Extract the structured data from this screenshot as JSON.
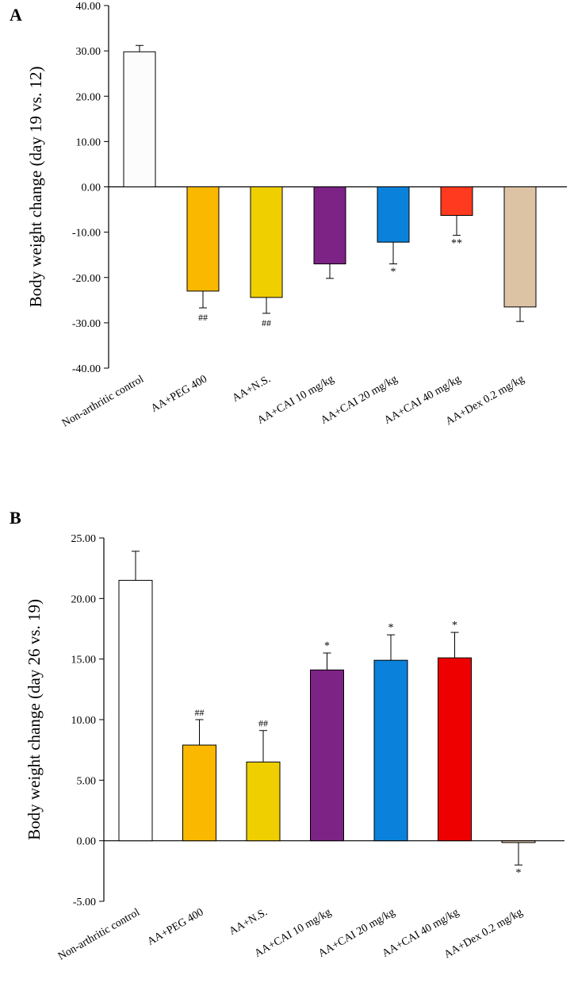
{
  "chart_data": [
    {
      "panel_label": "A",
      "type": "bar",
      "categories": [
        "Non-arthritic control",
        "AA+PEG 400",
        "AA+N.S.",
        "AA+CAI 10 mg/kg",
        "AA+CAI 20 mg/kg",
        "AA+CAI 40 mg/kg",
        "AA+Dex 0.2 mg/kg"
      ],
      "values": [
        29.8,
        -23.0,
        -24.4,
        -17.0,
        -12.2,
        -6.3,
        -26.5
      ],
      "errors": [
        1.4,
        3.7,
        3.5,
        3.2,
        4.8,
        4.4,
        3.2
      ],
      "annotations": [
        "",
        "##",
        "##",
        "",
        "*",
        "**",
        ""
      ],
      "colors": [
        "#fcfcfc",
        "#fbb800",
        "#efcf00",
        "#7c2385",
        "#0a82dc",
        "#ff3a1e",
        "#dcc3a4"
      ],
      "ylabel": "Body weight change (day 19 vs. 12)",
      "xlabel": "",
      "ylim": [
        -40,
        40
      ],
      "yticks": [
        "-40.00",
        "-30.00",
        "-20.00",
        "-10.00",
        "0.00",
        "10.00",
        "20.00",
        "30.00",
        "40.00"
      ],
      "grid": false
    },
    {
      "panel_label": "B",
      "type": "bar",
      "categories": [
        "Non-arthritic control",
        "AA+PEG 400",
        "AA+N.S.",
        "AA+CAI 10 mg/kg",
        "AA+CAI 20 mg/kg",
        "AA+CAI 40 mg/kg",
        "AA+Dex 0.2 mg/kg"
      ],
      "values": [
        21.5,
        7.9,
        6.5,
        14.1,
        14.9,
        15.1,
        -0.15
      ],
      "errors": [
        2.4,
        2.1,
        2.6,
        1.4,
        2.1,
        2.1,
        1.85
      ],
      "annotations": [
        "",
        "##",
        "##",
        "*",
        "*",
        "*",
        "*"
      ],
      "colors": [
        "#ffffff",
        "#fbb800",
        "#efcf00",
        "#7c2385",
        "#0a82dc",
        "#ef0000",
        "#d8bc9c"
      ],
      "ylabel": "Body weight change (day 26 vs. 19)",
      "xlabel": "",
      "ylim": [
        -5,
        25
      ],
      "yticks": [
        "-5.00",
        "0.00",
        "5.00",
        "10.00",
        "15.00",
        "20.00",
        "25.00"
      ],
      "grid": false
    }
  ]
}
